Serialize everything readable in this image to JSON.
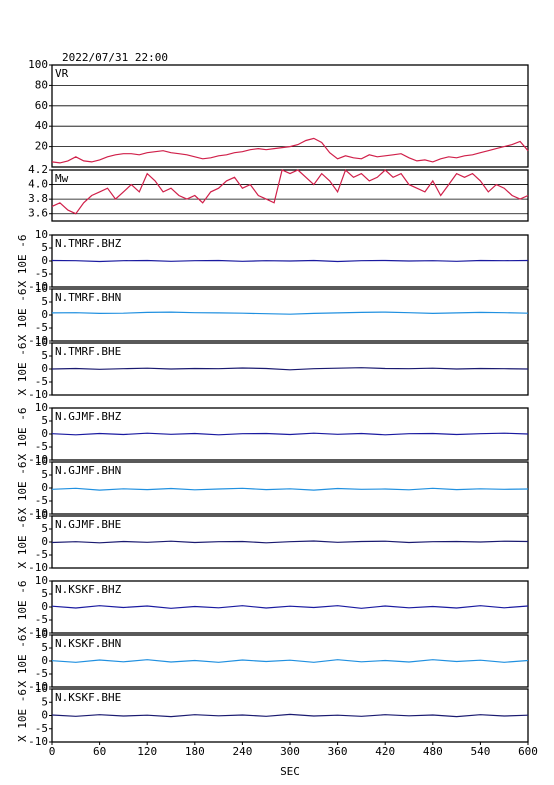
{
  "chart_data": [
    {
      "type": "line",
      "title": "2022/07/31 22:00",
      "label": "VR",
      "color": "#d0204a",
      "grid": true,
      "xlim": [
        0,
        600
      ],
      "ylim": [
        0,
        100
      ],
      "yticks": [
        20,
        40,
        60,
        80,
        100
      ],
      "x": [
        0,
        10,
        20,
        30,
        40,
        50,
        60,
        70,
        80,
        90,
        100,
        110,
        120,
        130,
        140,
        150,
        160,
        170,
        180,
        190,
        200,
        210,
        220,
        230,
        240,
        250,
        260,
        270,
        280,
        290,
        300,
        310,
        320,
        330,
        340,
        350,
        360,
        370,
        380,
        390,
        400,
        410,
        420,
        430,
        440,
        450,
        460,
        470,
        480,
        490,
        500,
        510,
        520,
        530,
        540,
        550,
        560,
        570,
        580,
        590,
        600
      ],
      "values": [
        5,
        4,
        6,
        10,
        6,
        5,
        7,
        10,
        12,
        13,
        13,
        12,
        14,
        15,
        16,
        14,
        13,
        12,
        10,
        8,
        9,
        11,
        12,
        14,
        15,
        17,
        18,
        17,
        18,
        19,
        20,
        22,
        26,
        28,
        24,
        14,
        8,
        11,
        9,
        8,
        12,
        10,
        11,
        12,
        13,
        9,
        6,
        7,
        5,
        8,
        10,
        9,
        11,
        12,
        14,
        16,
        18,
        20,
        22,
        25,
        16
      ]
    },
    {
      "type": "line",
      "label": "Mw",
      "color": "#d0204a",
      "grid": true,
      "xlim": [
        0,
        600
      ],
      "ylim": [
        3.5,
        4.2
      ],
      "yticks": [
        3.6,
        3.8,
        {
          "value": 4,
          "label": "4.0"
        },
        4.2
      ],
      "x": [
        0,
        10,
        20,
        30,
        40,
        50,
        60,
        70,
        80,
        90,
        100,
        110,
        120,
        130,
        140,
        150,
        160,
        170,
        180,
        190,
        200,
        210,
        220,
        230,
        240,
        250,
        260,
        270,
        280,
        290,
        300,
        310,
        320,
        330,
        340,
        350,
        360,
        370,
        380,
        390,
        400,
        410,
        420,
        430,
        440,
        450,
        460,
        470,
        480,
        490,
        500,
        510,
        520,
        530,
        540,
        550,
        560,
        570,
        580,
        590,
        600
      ],
      "values": [
        3.7,
        3.75,
        3.65,
        3.6,
        3.75,
        3.85,
        3.9,
        3.95,
        3.8,
        3.9,
        4.0,
        3.9,
        4.15,
        4.05,
        3.9,
        3.95,
        3.85,
        3.8,
        3.85,
        3.75,
        3.9,
        3.95,
        4.05,
        4.1,
        3.95,
        4.0,
        3.85,
        3.8,
        3.75,
        4.2,
        4.15,
        4.2,
        4.1,
        4.0,
        4.15,
        4.05,
        3.9,
        4.2,
        4.1,
        4.15,
        4.05,
        4.1,
        4.2,
        4.1,
        4.15,
        4.0,
        3.95,
        3.9,
        4.05,
        3.85,
        4.0,
        4.15,
        4.1,
        4.15,
        4.05,
        3.9,
        4.0,
        3.95,
        3.85,
        3.8,
        3.85
      ]
    },
    {
      "type": "line",
      "label": "N.TMRF.BHZ",
      "ylabel": "X 10E -6",
      "color": "#1a1aa0",
      "grid": false,
      "xlim": [
        0,
        600
      ],
      "ylim": [
        -10,
        10
      ],
      "yticks": [
        -10,
        -5,
        0,
        5,
        10
      ],
      "x": [
        0,
        30,
        60,
        90,
        120,
        150,
        180,
        210,
        240,
        270,
        300,
        330,
        360,
        390,
        420,
        450,
        480,
        510,
        540,
        570,
        600
      ],
      "values": [
        0.2,
        0.1,
        -0.2,
        0.1,
        0.2,
        -0.1,
        0.1,
        0.2,
        -0.1,
        0.1,
        0.0,
        0.2,
        -0.2,
        0.1,
        0.2,
        0.0,
        0.1,
        -0.1,
        0.2,
        0.1,
        0.2
      ]
    },
    {
      "type": "line",
      "label": "N.TMRF.BHN",
      "ylabel": "X 10E -6",
      "color": "#2090e0",
      "grid": false,
      "xlim": [
        0,
        600
      ],
      "ylim": [
        -10,
        10
      ],
      "yticks": [
        -10,
        -5,
        0,
        5,
        10
      ],
      "x": [
        0,
        30,
        60,
        90,
        120,
        150,
        180,
        210,
        240,
        270,
        300,
        330,
        360,
        390,
        420,
        450,
        480,
        510,
        540,
        570,
        600
      ],
      "values": [
        0.8,
        0.9,
        0.6,
        0.7,
        1.0,
        1.1,
        0.9,
        0.8,
        0.7,
        0.5,
        0.3,
        0.6,
        0.8,
        1.0,
        1.1,
        0.9,
        0.6,
        0.8,
        1.0,
        0.9,
        0.7
      ]
    },
    {
      "type": "line",
      "label": "N.TMRF.BHE",
      "ylabel": "X 10E -6",
      "color": "#1a1a70",
      "grid": false,
      "xlim": [
        0,
        600
      ],
      "ylim": [
        -10,
        10
      ],
      "yticks": [
        -10,
        -5,
        0,
        5,
        10
      ],
      "x": [
        0,
        30,
        60,
        90,
        120,
        150,
        180,
        210,
        240,
        270,
        300,
        330,
        360,
        390,
        420,
        450,
        480,
        510,
        540,
        570,
        600
      ],
      "values": [
        0.0,
        0.2,
        -0.1,
        0.1,
        0.3,
        0.0,
        0.2,
        0.1,
        0.4,
        0.2,
        -0.3,
        0.1,
        0.3,
        0.5,
        0.2,
        0.1,
        0.3,
        0.0,
        0.2,
        0.1,
        0.0
      ]
    },
    {
      "type": "line",
      "label": "N.GJMF.BHZ",
      "ylabel": "X 10E -6",
      "color": "#1a1aa0",
      "grid": false,
      "xlim": [
        0,
        600
      ],
      "ylim": [
        -10,
        10
      ],
      "yticks": [
        -10,
        -5,
        0,
        5,
        10
      ],
      "x": [
        0,
        30,
        60,
        90,
        120,
        150,
        180,
        210,
        240,
        270,
        300,
        330,
        360,
        390,
        420,
        450,
        480,
        510,
        540,
        570,
        600
      ],
      "values": [
        0.1,
        -0.3,
        0.2,
        -0.2,
        0.3,
        -0.1,
        0.2,
        -0.3,
        0.1,
        0.2,
        -0.2,
        0.3,
        -0.1,
        0.2,
        -0.3,
        0.1,
        0.2,
        -0.2,
        0.1,
        0.3,
        0.0
      ]
    },
    {
      "type": "line",
      "label": "N.GJMF.BHN",
      "ylabel": "X 10E -6",
      "color": "#2090e0",
      "grid": false,
      "xlim": [
        0,
        600
      ],
      "ylim": [
        -10,
        10
      ],
      "yticks": [
        -10,
        -5,
        0,
        5,
        10
      ],
      "x": [
        0,
        30,
        60,
        90,
        120,
        150,
        180,
        210,
        240,
        270,
        300,
        330,
        360,
        390,
        420,
        450,
        480,
        510,
        540,
        570,
        600
      ],
      "values": [
        -0.5,
        -0.1,
        -0.8,
        -0.3,
        -0.6,
        -0.2,
        -0.7,
        -0.4,
        -0.1,
        -0.6,
        -0.3,
        -0.8,
        -0.2,
        -0.5,
        -0.4,
        -0.7,
        -0.1,
        -0.6,
        -0.3,
        -0.5,
        -0.4
      ]
    },
    {
      "type": "line",
      "label": "N.GJMF.BHE",
      "ylabel": "X 10E -6",
      "color": "#1a1a70",
      "grid": false,
      "xlim": [
        0,
        600
      ],
      "ylim": [
        -10,
        10
      ],
      "yticks": [
        -10,
        -5,
        0,
        5,
        10
      ],
      "x": [
        0,
        30,
        60,
        90,
        120,
        150,
        180,
        210,
        240,
        270,
        300,
        330,
        360,
        390,
        420,
        450,
        480,
        510,
        540,
        570,
        600
      ],
      "values": [
        -0.2,
        0.1,
        -0.3,
        0.2,
        -0.1,
        0.3,
        -0.2,
        0.1,
        0.2,
        -0.3,
        0.1,
        0.4,
        -0.1,
        0.2,
        0.3,
        -0.2,
        0.1,
        0.2,
        0.0,
        0.3,
        0.2
      ]
    },
    {
      "type": "line",
      "label": "N.KSKF.BHZ",
      "ylabel": "X 10E -6",
      "color": "#1a1aa0",
      "grid": false,
      "xlim": [
        0,
        600
      ],
      "ylim": [
        -10,
        10
      ],
      "yticks": [
        -10,
        -5,
        0,
        5,
        10
      ],
      "x": [
        0,
        30,
        60,
        90,
        120,
        150,
        180,
        210,
        240,
        270,
        300,
        330,
        360,
        390,
        420,
        450,
        480,
        510,
        540,
        570,
        600
      ],
      "values": [
        0.3,
        -0.4,
        0.5,
        -0.2,
        0.4,
        -0.5,
        0.2,
        -0.3,
        0.5,
        -0.4,
        0.3,
        -0.2,
        0.5,
        -0.5,
        0.4,
        -0.3,
        0.2,
        -0.4,
        0.5,
        -0.3,
        0.4
      ]
    },
    {
      "type": "line",
      "label": "N.KSKF.BHN",
      "ylabel": "X 10E -6",
      "color": "#2090e0",
      "grid": false,
      "xlim": [
        0,
        600
      ],
      "ylim": [
        -10,
        10
      ],
      "yticks": [
        -10,
        -5,
        0,
        5,
        10
      ],
      "x": [
        0,
        30,
        60,
        90,
        120,
        150,
        180,
        210,
        240,
        270,
        300,
        330,
        360,
        390,
        420,
        450,
        480,
        510,
        540,
        570,
        600
      ],
      "values": [
        0.1,
        -0.5,
        0.4,
        -0.3,
        0.5,
        -0.4,
        0.2,
        -0.5,
        0.4,
        -0.2,
        0.3,
        -0.5,
        0.5,
        -0.3,
        0.2,
        -0.4,
        0.5,
        -0.2,
        0.3,
        -0.5,
        0.2
      ]
    },
    {
      "type": "line",
      "label": "N.KSKF.BHE",
      "ylabel": "X 10E -6",
      "xlabel": "SEC",
      "color": "#1a1a70",
      "grid": false,
      "xlim": [
        0,
        600
      ],
      "ylim": [
        -10,
        10
      ],
      "yticks": [
        -10,
        -5,
        0,
        5,
        10
      ],
      "xticks": [
        0,
        60,
        120,
        180,
        240,
        300,
        360,
        420,
        480,
        540,
        600
      ],
      "x": [
        0,
        30,
        60,
        90,
        120,
        150,
        180,
        210,
        240,
        270,
        300,
        330,
        360,
        390,
        420,
        450,
        480,
        510,
        540,
        570,
        600
      ],
      "values": [
        0.2,
        -0.3,
        0.3,
        -0.2,
        0.1,
        -0.4,
        0.3,
        -0.1,
        0.2,
        -0.3,
        0.4,
        -0.2,
        0.1,
        -0.3,
        0.3,
        -0.1,
        0.2,
        -0.4,
        0.3,
        -0.2,
        0.1
      ]
    }
  ]
}
